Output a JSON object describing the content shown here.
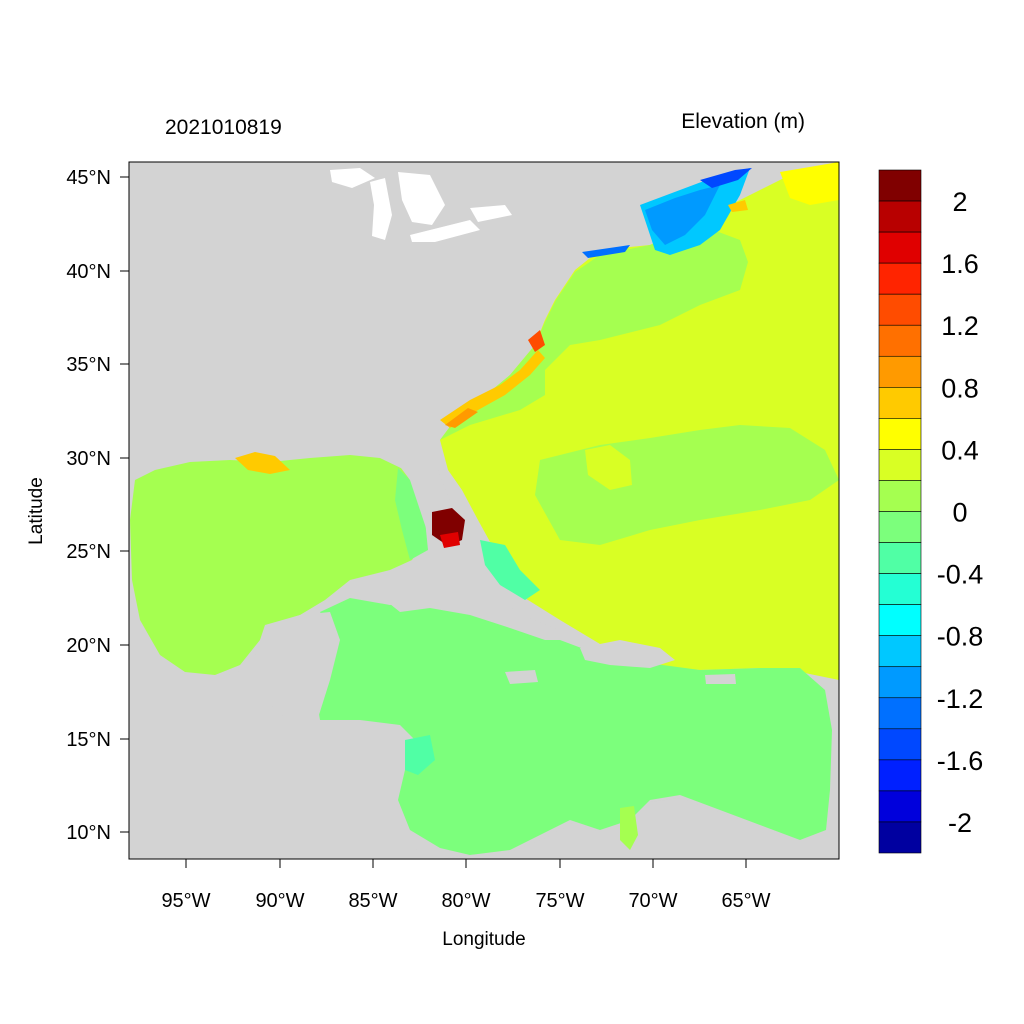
{
  "header": {
    "date_label": "2021010819",
    "variable_label": "Elevation (m)"
  },
  "axes": {
    "xlabel": "Longitude",
    "ylabel": "Latitude",
    "x_ticks": [
      "95°W",
      "90°W",
      "85°W",
      "80°W",
      "75°W",
      "70°W",
      "65°W"
    ],
    "y_ticks": [
      "45°N",
      "40°N",
      "35°N",
      "30°N",
      "25°N",
      "20°N",
      "15°N",
      "10°N"
    ],
    "lon_range": [
      -98,
      -60
    ],
    "lat_range": [
      8.5,
      46
    ]
  },
  "legend": {
    "labels": [
      "2",
      "1.6",
      "1.2",
      "0.8",
      "0.4",
      "0",
      "-0.4",
      "-0.8",
      "-1.2",
      "-1.6",
      "-2"
    ],
    "colors": [
      "#800000",
      "#b80000",
      "#e00000",
      "#ff2400",
      "#ff4c00",
      "#ff7000",
      "#ff9a00",
      "#ffca00",
      "#ffff00",
      "#d9ff24",
      "#a5ff50",
      "#7cff7c",
      "#50ffa5",
      "#24ffd4",
      "#00ffff",
      "#00c8ff",
      "#009aff",
      "#0070ff",
      "#0048ff",
      "#0020ff",
      "#0000dc",
      "#0000a0"
    ]
  },
  "colors": {
    "land": "#d3d3d3",
    "water_white": "#ffffff"
  }
}
